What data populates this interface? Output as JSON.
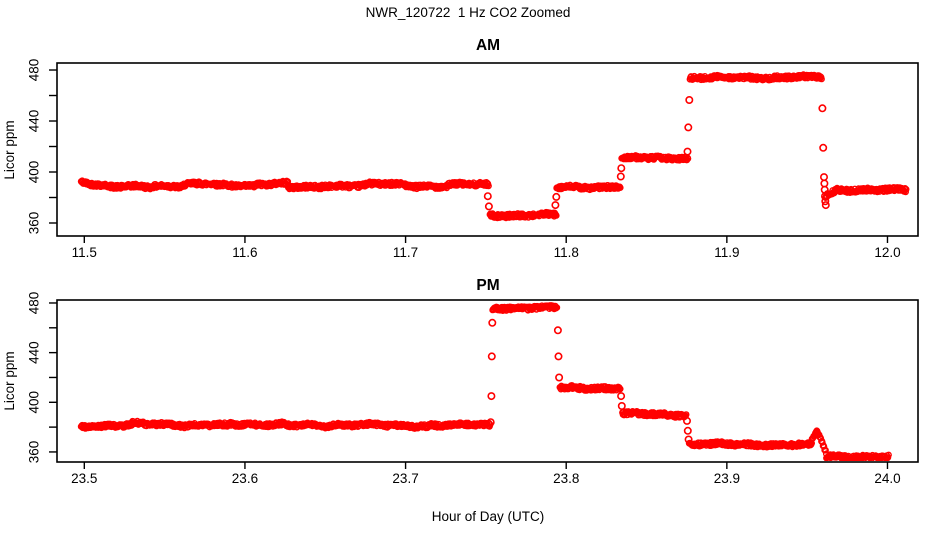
{
  "app": {
    "background": "#ffffff"
  },
  "chart_data": {
    "type": "scatter",
    "title": "NWR_120722  1 Hz CO2 Zoomed",
    "xlabel": "Hour of Day (UTC)",
    "marker": "open-circle",
    "point_color": "#ff0000",
    "axis_color": "#000000",
    "grid": false,
    "legend": "none",
    "segment_format": [
      "t_start_hour",
      "t_end_hour",
      "ppm_start",
      "ppm_end",
      "wobble_amp"
    ],
    "point_format": [
      "t_hour",
      "ppm"
    ],
    "panels": [
      {
        "id": "am",
        "title": "AM",
        "ylabel": "Licor ppm",
        "xlim": [
          11.483,
          12.019
        ],
        "ylim": [
          349.8,
          485.5
        ],
        "xticks": [
          {
            "v": 11.5,
            "label": "11.5"
          },
          {
            "v": 11.6,
            "label": "11.6"
          },
          {
            "v": 11.7,
            "label": "11.7"
          },
          {
            "v": 11.8,
            "label": "11.8"
          },
          {
            "v": 11.9,
            "label": "11.9"
          },
          {
            "v": 12.0,
            "label": "12.0"
          }
        ],
        "yticks": [
          {
            "v": 360,
            "label": "360"
          },
          {
            "v": 400,
            "label": "400"
          },
          {
            "v": 440,
            "label": "440"
          },
          {
            "v": 480,
            "label": "480"
          }
        ],
        "yticks_minor": [
          380,
          420,
          460
        ],
        "segments": [
          [
            11.498,
            11.515,
            392.5,
            389.0,
            0.6
          ],
          [
            11.515,
            11.542,
            388.3,
            388.3,
            0.7
          ],
          [
            11.542,
            11.562,
            389.2,
            389.2,
            0.7
          ],
          [
            11.562,
            11.582,
            390.6,
            390.6,
            0.7
          ],
          [
            11.582,
            11.607,
            389.3,
            389.3,
            0.7
          ],
          [
            11.607,
            11.627,
            391.0,
            391.0,
            0.7
          ],
          [
            11.627,
            11.648,
            387.8,
            387.8,
            0.7
          ],
          [
            11.648,
            11.675,
            389.5,
            389.5,
            0.7
          ],
          [
            11.675,
            11.7,
            390.3,
            390.3,
            0.7
          ],
          [
            11.7,
            11.726,
            389.0,
            389.0,
            0.7
          ],
          [
            11.726,
            11.752,
            390.0,
            390.0,
            0.7
          ],
          [
            11.7525,
            11.794,
            366.0,
            366.3,
            0.6
          ],
          [
            11.794,
            11.8338,
            388.0,
            388.3,
            0.6
          ],
          [
            11.8345,
            11.876,
            410.8,
            411.0,
            0.6
          ],
          [
            11.877,
            11.9592,
            473.8,
            474.3,
            0.6
          ],
          [
            11.9615,
            11.968,
            381.0,
            385.5,
            0.5
          ],
          [
            11.968,
            12.012,
            386.0,
            385.8,
            0.6
          ]
        ],
        "transition_points": [
          [
            11.7512,
            381.0
          ],
          [
            11.7519,
            373.0
          ],
          [
            11.7933,
            374.0
          ],
          [
            11.7938,
            380.5
          ],
          [
            11.834,
            396.5
          ],
          [
            11.8343,
            403.0
          ],
          [
            11.8755,
            416.0
          ],
          [
            11.876,
            435.0
          ],
          [
            11.8766,
            456.5
          ],
          [
            11.9595,
            450.0
          ],
          [
            11.96,
            419.0
          ],
          [
            11.9605,
            396.0
          ],
          [
            11.9607,
            391.0
          ],
          [
            11.9609,
            386.0
          ],
          [
            11.9611,
            381.0
          ],
          [
            11.9613,
            377.0
          ],
          [
            11.9616,
            374.0
          ]
        ]
      },
      {
        "id": "pm",
        "title": "PM",
        "ylabel": "Licor ppm",
        "xlim": [
          23.483,
          24.019
        ],
        "ylim": [
          351.9,
          482.4
        ],
        "xticks": [
          {
            "v": 23.5,
            "label": "23.5"
          },
          {
            "v": 23.6,
            "label": "23.6"
          },
          {
            "v": 23.7,
            "label": "23.7"
          },
          {
            "v": 23.8,
            "label": "23.8"
          },
          {
            "v": 23.9,
            "label": "23.9"
          },
          {
            "v": 24.0,
            "label": "24.0"
          }
        ],
        "yticks": [
          {
            "v": 360,
            "label": "360"
          },
          {
            "v": 400,
            "label": "400"
          },
          {
            "v": 440,
            "label": "440"
          },
          {
            "v": 480,
            "label": "480"
          }
        ],
        "yticks_minor": [
          380,
          420,
          460
        ],
        "segments": [
          [
            23.498,
            23.53,
            381.0,
            381.0,
            0.7
          ],
          [
            23.53,
            23.56,
            382.5,
            382.5,
            0.7
          ],
          [
            23.56,
            23.59,
            381.3,
            381.3,
            0.7
          ],
          [
            23.59,
            23.625,
            382.3,
            382.3,
            0.7
          ],
          [
            23.625,
            23.655,
            381.2,
            381.2,
            0.7
          ],
          [
            23.655,
            23.685,
            382.0,
            382.0,
            0.7
          ],
          [
            23.685,
            23.715,
            381.0,
            381.0,
            0.7
          ],
          [
            23.715,
            23.753,
            381.8,
            381.8,
            0.7
          ],
          [
            23.7542,
            23.7945,
            475.8,
            476.2,
            0.6
          ],
          [
            23.796,
            23.834,
            411.8,
            411.2,
            0.6
          ],
          [
            23.835,
            23.875,
            390.8,
            389.8,
            0.6
          ],
          [
            23.8765,
            23.953,
            366.3,
            365.6,
            0.6
          ],
          [
            23.953,
            23.9565,
            369.0,
            378.0,
            0.4
          ],
          [
            23.9565,
            23.962,
            376.0,
            359.0,
            0.4
          ],
          [
            23.962,
            24.001,
            356.5,
            355.8,
            0.5
          ]
        ],
        "transition_points": [
          [
            23.753,
            384.0
          ],
          [
            23.7534,
            405.0
          ],
          [
            23.7537,
            437.0
          ],
          [
            23.754,
            464.0
          ],
          [
            23.7948,
            458.0
          ],
          [
            23.7952,
            437.0
          ],
          [
            23.7956,
            420.0
          ],
          [
            23.8342,
            405.0
          ],
          [
            23.8346,
            397.0
          ],
          [
            23.8752,
            385.0
          ],
          [
            23.8757,
            377.0
          ],
          [
            23.8762,
            370.0
          ]
        ]
      }
    ]
  }
}
